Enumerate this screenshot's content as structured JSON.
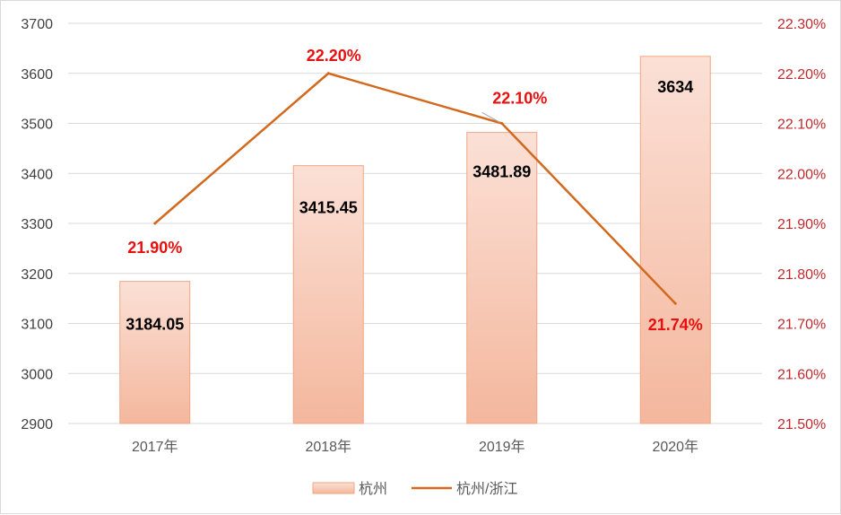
{
  "chart_data": {
    "type": "bar",
    "categories": [
      "2017年",
      "2018年",
      "2019年",
      "2020年"
    ],
    "series": [
      {
        "name": "杭州",
        "type": "bar",
        "axis": "left",
        "values": [
          3184.05,
          3415.45,
          3481.89,
          3634
        ],
        "labels": [
          "3184.05",
          "3415.45",
          "3481.89",
          "3634"
        ]
      },
      {
        "name": "杭州/浙江",
        "type": "line",
        "axis": "right",
        "values": [
          21.9,
          22.2,
          22.1,
          21.74
        ],
        "labels": [
          "21.90%",
          "22.20%",
          "22.10%",
          "21.74%"
        ]
      }
    ],
    "y_left": {
      "min": 2900,
      "max": 3700,
      "ticks": [
        "2900",
        "3000",
        "3100",
        "3200",
        "3300",
        "3400",
        "3500",
        "3600",
        "3700"
      ]
    },
    "y_right": {
      "min": 21.5,
      "max": 22.3,
      "ticks": [
        "21.50%",
        "21.60%",
        "21.70%",
        "21.80%",
        "21.90%",
        "22.00%",
        "22.10%",
        "22.20%",
        "22.30%"
      ]
    },
    "grid": true,
    "legend_position": "bottom",
    "colors": {
      "bar_top": "#fbe0d6",
      "bar_bottom": "#f4b79d",
      "bar_border": "#f0a582",
      "line": "#d2691e",
      "line_label": "#e8100e",
      "right_axis": "#c0282c"
    }
  }
}
